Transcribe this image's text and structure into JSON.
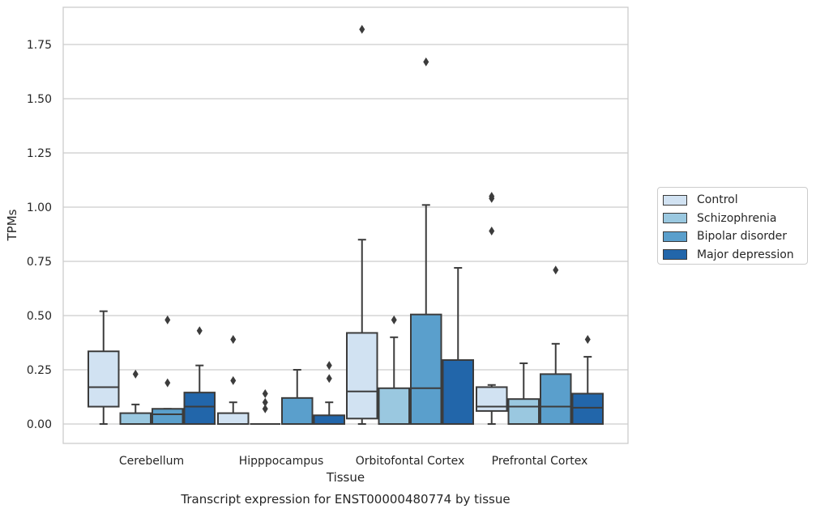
{
  "chart_data": {
    "type": "box",
    "title": "Transcript expression for ENST00000480774 by tissue",
    "xlabel": "Tissue",
    "ylabel": "TPMs",
    "ylim": [
      -0.09,
      1.91
    ],
    "yticks": [
      "0.00",
      "0.25",
      "0.50",
      "0.75",
      "1.00",
      "1.25",
      "1.50",
      "1.75"
    ],
    "grid": "horizontal",
    "legend_position": "right",
    "categories": [
      "Cerebellum",
      "Hipppocampus",
      "Orbitofontal Cortex",
      "Prefrontal Cortex"
    ],
    "series": [
      {
        "name": "Control",
        "color": "#d1e2f2",
        "boxes": [
          {
            "whislo": 0.0,
            "q1": 0.08,
            "med": 0.17,
            "q3": 0.335,
            "whishi": 0.52,
            "fliers": []
          },
          {
            "whislo": 0.0,
            "q1": 0.0,
            "med": 0.0,
            "q3": 0.05,
            "whishi": 0.1,
            "fliers": [
              0.2,
              0.39
            ]
          },
          {
            "whislo": 0.0,
            "q1": 0.025,
            "med": 0.15,
            "q3": 0.42,
            "whishi": 0.85,
            "fliers": [
              1.82
            ]
          },
          {
            "whislo": 0.0,
            "q1": 0.06,
            "med": 0.08,
            "q3": 0.17,
            "whishi": 0.18,
            "fliers": [
              0.89,
              1.04,
              1.05
            ]
          }
        ]
      },
      {
        "name": "Schizophrenia",
        "color": "#9ac8e0",
        "boxes": [
          {
            "whislo": 0.0,
            "q1": 0.0,
            "med": 0.0,
            "q3": 0.05,
            "whishi": 0.09,
            "fliers": [
              0.23
            ]
          },
          {
            "whislo": 0.0,
            "q1": 0.0,
            "med": 0.0,
            "q3": 0.0,
            "whishi": 0.0,
            "fliers": [
              0.07,
              0.1,
              0.14
            ]
          },
          {
            "whislo": 0.0,
            "q1": 0.0,
            "med": 0.0,
            "q3": 0.165,
            "whishi": 0.4,
            "fliers": [
              0.48
            ]
          },
          {
            "whislo": 0.0,
            "q1": 0.0,
            "med": 0.08,
            "q3": 0.115,
            "whishi": 0.28,
            "fliers": []
          }
        ]
      },
      {
        "name": "Bipolar disorder",
        "color": "#5a9fcc",
        "boxes": [
          {
            "whislo": 0.0,
            "q1": 0.0,
            "med": 0.045,
            "q3": 0.07,
            "whishi": 0.07,
            "fliers": [
              0.19,
              0.48
            ]
          },
          {
            "whislo": 0.0,
            "q1": 0.0,
            "med": 0.0,
            "q3": 0.12,
            "whishi": 0.25,
            "fliers": []
          },
          {
            "whislo": 0.0,
            "q1": 0.0,
            "med": 0.165,
            "q3": 0.505,
            "whishi": 1.01,
            "fliers": [
              1.67
            ]
          },
          {
            "whislo": 0.0,
            "q1": 0.0,
            "med": 0.08,
            "q3": 0.23,
            "whishi": 0.37,
            "fliers": [
              0.71
            ]
          }
        ]
      },
      {
        "name": "Major depression",
        "color": "#2266aa",
        "boxes": [
          {
            "whislo": 0.0,
            "q1": 0.0,
            "med": 0.08,
            "q3": 0.145,
            "whishi": 0.27,
            "fliers": [
              0.43
            ]
          },
          {
            "whislo": 0.0,
            "q1": 0.0,
            "med": 0.0,
            "q3": 0.04,
            "whishi": 0.1,
            "fliers": [
              0.21,
              0.27
            ]
          },
          {
            "whislo": 0.0,
            "q1": 0.0,
            "med": 0.0,
            "q3": 0.295,
            "whishi": 0.72,
            "fliers": []
          },
          {
            "whislo": 0.0,
            "q1": 0.0,
            "med": 0.075,
            "q3": 0.14,
            "whishi": 0.31,
            "fliers": [
              0.39
            ]
          }
        ]
      }
    ]
  }
}
